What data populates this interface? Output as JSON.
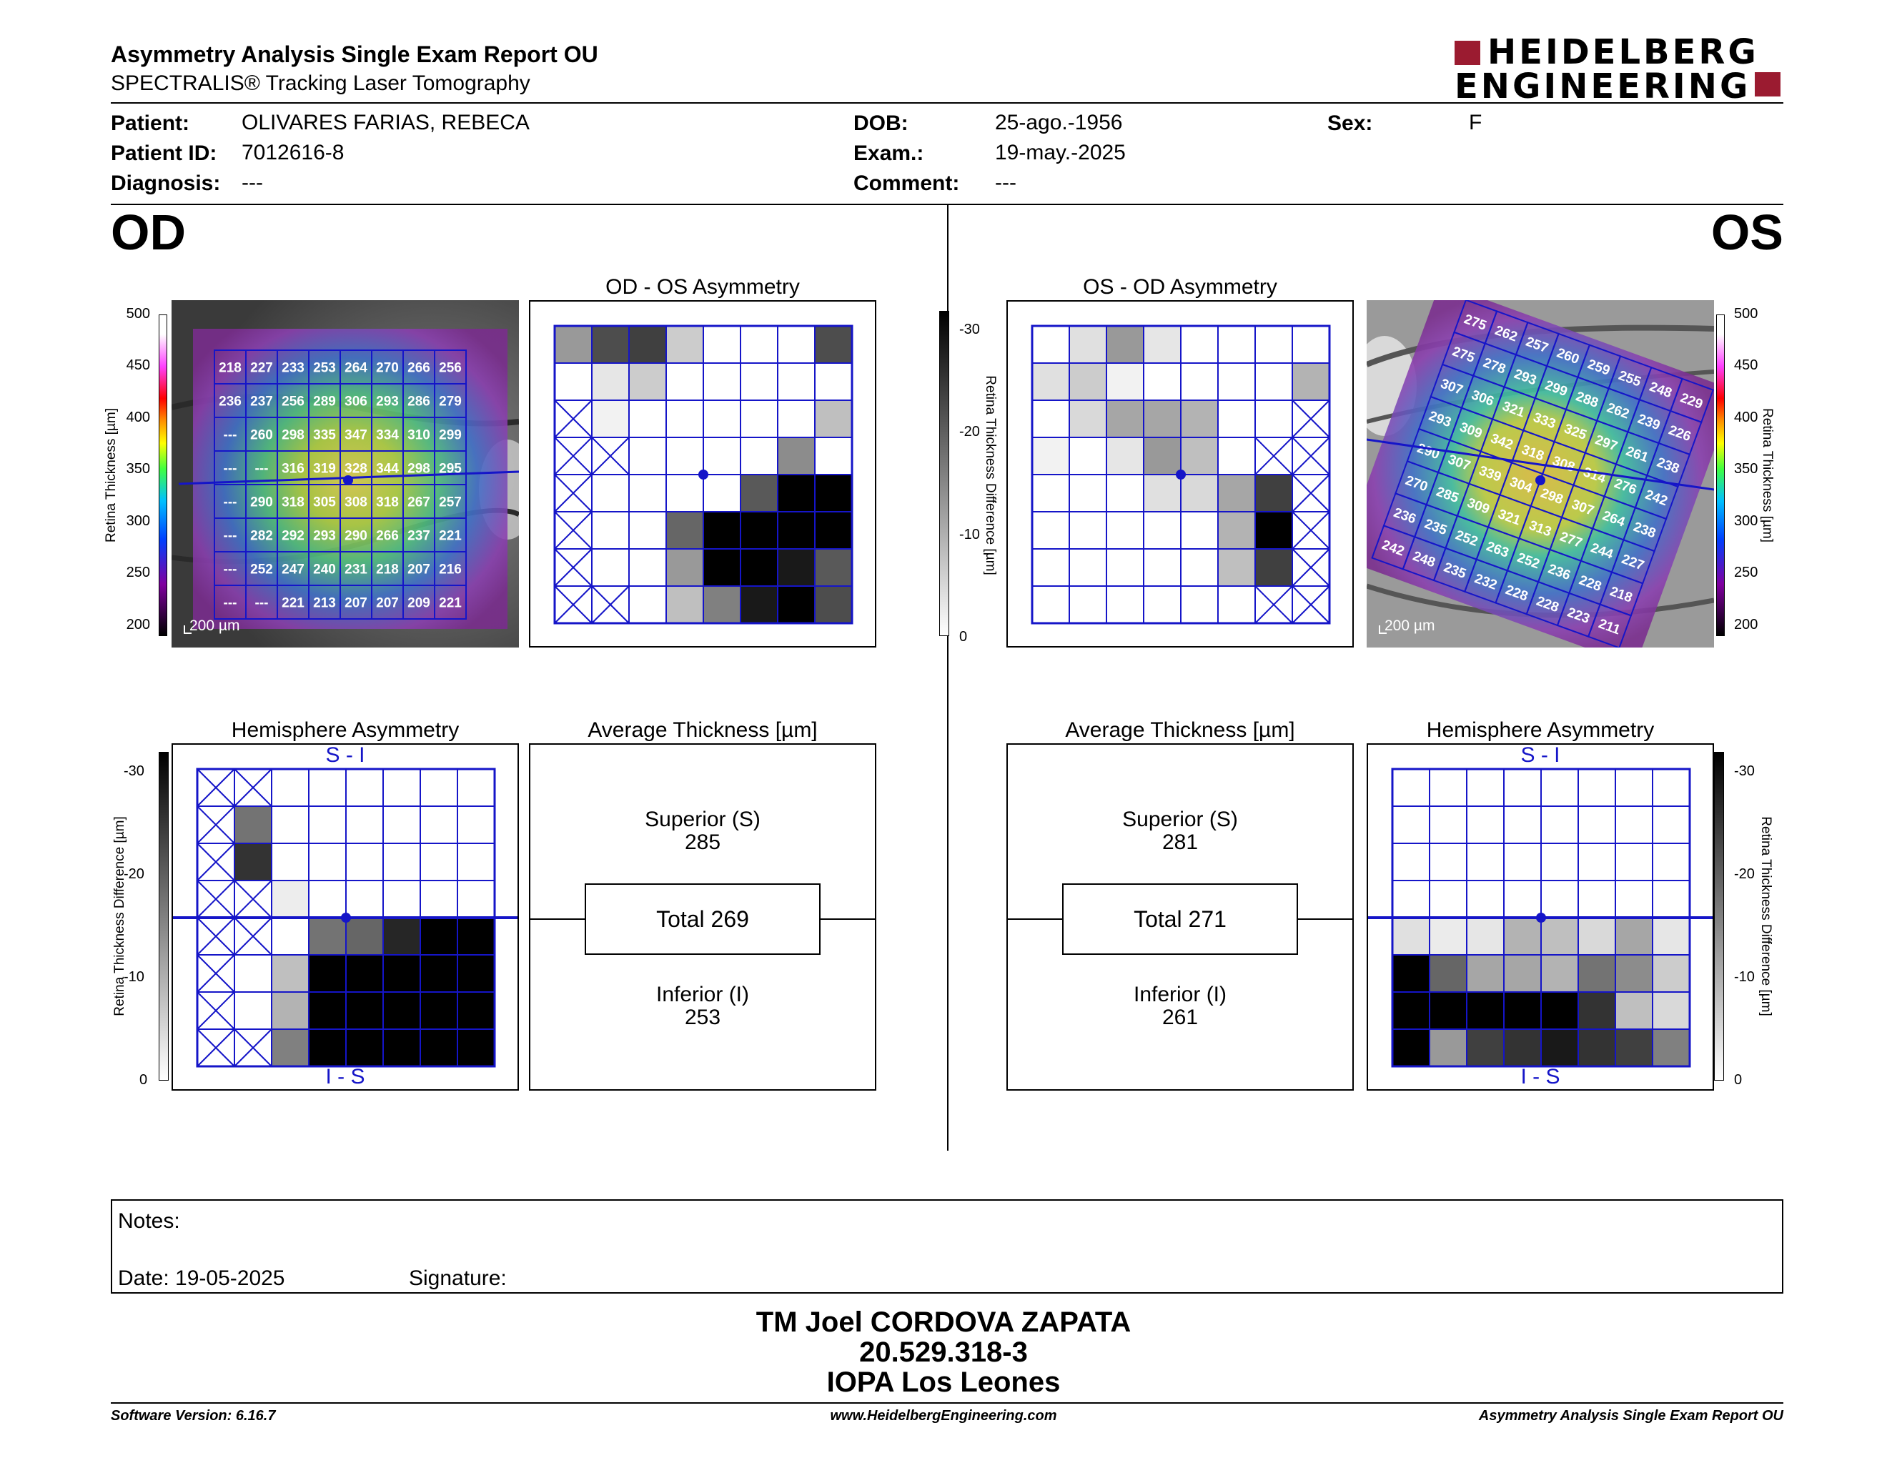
{
  "header": {
    "title": "Asymmetry Analysis Single Exam Report OU",
    "subtitle": "SPECTRALIS® Tracking Laser Tomography",
    "brand_line1": "HEIDELBERG",
    "brand_line2": "ENGINEERING",
    "brand_color": "#9b1b30"
  },
  "patient": {
    "patient_label": "Patient:",
    "patient_value": "OLIVARES FARIAS, REBECA",
    "id_label": "Patient ID:",
    "id_value": "7012616-8",
    "diagnosis_label": "Diagnosis:",
    "diagnosis_value": "---",
    "dob_label": "DOB:",
    "dob_value": "25-ago.-1956",
    "exam_label": "Exam.:",
    "exam_value": "19-may.-2025",
    "comment_label": "Comment:",
    "comment_value": "---",
    "sex_label": "Sex:",
    "sex_value": "F"
  },
  "od": {
    "eye": "OD",
    "asym_title": "OD - OS Asymmetry",
    "hemi_title": "Hemisphere Asymmetry",
    "hemi_top": "S - I",
    "hemi_bottom": "I - S",
    "avg_title": "Average Thickness [µm]",
    "superior_label": "Superior (S)",
    "superior_value": "285",
    "total_label": "Total 269",
    "inferior_label": "Inferior (I)",
    "inferior_value": "253",
    "scale_bar": "200 µm",
    "thickness_grid": [
      [
        "218",
        "227",
        "233",
        "253",
        "264",
        "270",
        "266",
        "256"
      ],
      [
        "236",
        "237",
        "256",
        "289",
        "306",
        "293",
        "286",
        "279"
      ],
      [
        "---",
        "260",
        "298",
        "335",
        "347",
        "334",
        "310",
        "299"
      ],
      [
        "---",
        "---",
        "316",
        "319",
        "328",
        "344",
        "298",
        "295"
      ],
      [
        "---",
        "290",
        "318",
        "305",
        "308",
        "318",
        "267",
        "257"
      ],
      [
        "---",
        "282",
        "292",
        "293",
        "290",
        "266",
        "237",
        "221"
      ],
      [
        "---",
        "252",
        "247",
        "240",
        "231",
        "218",
        "207",
        "216"
      ],
      [
        "---",
        "---",
        "221",
        "213",
        "207",
        "207",
        "209",
        "221"
      ]
    ],
    "asym_grid": [
      [
        0.4,
        0.7,
        0.75,
        0.2,
        0,
        0,
        0,
        0.7
      ],
      [
        0,
        0.1,
        0.2,
        0,
        0,
        0,
        0,
        0
      ],
      [
        "x",
        0.05,
        0,
        0,
        0,
        0,
        0,
        0.25
      ],
      [
        "x",
        "x",
        0,
        0,
        0,
        0,
        0.45,
        0
      ],
      [
        "x",
        0,
        0,
        0,
        0,
        0.65,
        1,
        1
      ],
      [
        "x",
        0,
        0,
        0.6,
        1,
        1,
        1,
        1
      ],
      [
        "x",
        0,
        0,
        0.4,
        1,
        1,
        0.9,
        0.65
      ],
      [
        "x",
        "x",
        0,
        0.25,
        0.5,
        0.9,
        1,
        0.7
      ]
    ],
    "hemi_grid": [
      [
        "x",
        "x",
        0,
        0,
        0,
        0,
        0,
        0
      ],
      [
        "x",
        0.55,
        0,
        0,
        0,
        0,
        0,
        0
      ],
      [
        "x",
        0.8,
        0,
        0,
        0,
        0,
        0,
        0
      ],
      [
        "x",
        "x",
        0.07,
        0,
        0,
        0,
        0,
        0
      ],
      [
        "x",
        "x",
        0,
        0.55,
        0.6,
        0.85,
        1,
        1
      ],
      [
        "x",
        0,
        0.25,
        1,
        1,
        1,
        1,
        1
      ],
      [
        "x",
        0,
        0.3,
        1,
        1,
        1,
        1,
        1
      ],
      [
        "x",
        "x",
        0.5,
        1,
        1,
        1,
        1,
        1
      ]
    ]
  },
  "os": {
    "eye": "OS",
    "asym_title": "OS - OD Asymmetry",
    "hemi_title": "Hemisphere Asymmetry",
    "hemi_top": "S - I",
    "hemi_bottom": "I - S",
    "avg_title": "Average Thickness [µm]",
    "superior_label": "Superior (S)",
    "superior_value": "281",
    "total_label": "Total 271",
    "inferior_label": "Inferior (I)",
    "inferior_value": "261",
    "scale_bar": "200 µm",
    "thickness_grid": [
      [
        "275",
        "262",
        "257",
        "260",
        "259",
        "255",
        "248",
        "229"
      ],
      [
        "275",
        "278",
        "293",
        "299",
        "288",
        "262",
        "239",
        "226"
      ],
      [
        "307",
        "306",
        "321",
        "333",
        "325",
        "297",
        "261",
        "238"
      ],
      [
        "293",
        "309",
        "342",
        "318",
        "308",
        "314",
        "276",
        "242"
      ],
      [
        "290",
        "307",
        "339",
        "304",
        "298",
        "307",
        "264",
        "238"
      ],
      [
        "270",
        "285",
        "309",
        "321",
        "313",
        "277",
        "244",
        "227"
      ],
      [
        "236",
        "235",
        "252",
        "263",
        "252",
        "236",
        "228",
        "218"
      ],
      [
        "242",
        "248",
        "235",
        "232",
        "228",
        "228",
        "223",
        "211"
      ]
    ],
    "asym_grid": [
      [
        0,
        0.12,
        0.4,
        0.1,
        0,
        0,
        0,
        0
      ],
      [
        0.12,
        0.2,
        0.05,
        0,
        0,
        0,
        0,
        0.3
      ],
      [
        0,
        0.15,
        0.35,
        0.35,
        0.3,
        0,
        0,
        "x"
      ],
      [
        0.05,
        0,
        0.1,
        0.4,
        0.25,
        0,
        "x",
        "x"
      ],
      [
        0,
        0,
        0,
        0.12,
        0.15,
        0.35,
        0.75,
        "x"
      ],
      [
        0,
        0,
        0,
        0,
        0,
        0.3,
        1,
        "x"
      ],
      [
        0,
        0,
        0,
        0,
        0,
        0.25,
        0.75,
        "x"
      ],
      [
        0,
        0,
        0,
        0,
        0,
        0,
        "x",
        "x"
      ]
    ],
    "hemi_grid": [
      [
        0,
        0,
        0,
        0,
        0,
        0,
        0,
        0
      ],
      [
        0,
        0,
        0,
        0,
        0,
        0,
        0,
        0
      ],
      [
        0,
        0,
        0,
        0,
        0,
        0,
        0,
        0
      ],
      [
        0,
        0,
        0,
        0,
        0,
        0,
        0,
        0
      ],
      [
        0.12,
        0.08,
        0.1,
        0.3,
        0.25,
        0.15,
        0.35,
        0.1
      ],
      [
        1,
        0.6,
        0.35,
        0.35,
        0.3,
        0.55,
        0.45,
        0.2
      ],
      [
        1,
        1,
        1,
        1,
        1,
        0.8,
        0.25,
        0.15
      ],
      [
        1,
        0.4,
        0.75,
        0.8,
        0.9,
        0.8,
        0.75,
        0.5
      ]
    ]
  },
  "scales": {
    "thickness_label": "Retina  Thickness [µm]",
    "thickness_ticks": [
      "500",
      "450",
      "400",
      "350",
      "300",
      "250",
      "200"
    ],
    "diff_label": "Retina Thickness Difference [µm]",
    "diff_ticks": [
      "-30",
      "-20",
      "-10",
      "0"
    ]
  },
  "notes": {
    "notes_label": "Notes:",
    "date_label": "Date: 19-05-2025",
    "signature_label": "Signature:"
  },
  "signature_block": {
    "name": "TM Joel CORDOVA ZAPATA",
    "rut": "20.529.318-3",
    "clinic": "IOPA Los Leones"
  },
  "footer": {
    "software": "Software Version: 6.16.7",
    "website": "www.HeidelbergEngineering.com",
    "report": "Asymmetry Analysis Single Exam Report OU"
  },
  "colors": {
    "grid_line": "#1515c8",
    "frame": "#000000"
  }
}
